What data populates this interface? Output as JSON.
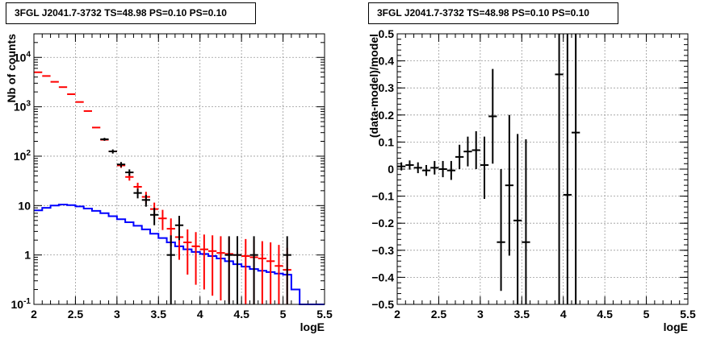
{
  "chart_data": [
    {
      "type": "line",
      "title": "3FGL J2041.7-3732 TS=48.98 PS=0.10 PS=0.10",
      "xlabel": "logE",
      "ylabel": "Nb of counts",
      "xlim": [
        2,
        5.5
      ],
      "ylim": [
        0.1,
        30000
      ],
      "yscale": "log",
      "grid": true,
      "xticks": [
        "2",
        "2.5",
        "3",
        "3.5",
        "4",
        "4.5",
        "5",
        "5.5"
      ],
      "yticks": [
        "10^-1",
        "1",
        "10",
        "10^2",
        "10^3",
        "10^4"
      ],
      "series": [
        {
          "color": "#ff0000",
          "kind": "errorbar",
          "points": [
            {
              "x": 2.05,
              "y": 5000,
              "lo": 0,
              "hi": 0
            },
            {
              "x": 2.15,
              "y": 4200,
              "lo": 0,
              "hi": 0
            },
            {
              "x": 2.25,
              "y": 3200,
              "lo": 0,
              "hi": 0
            },
            {
              "x": 2.35,
              "y": 2500,
              "lo": 0,
              "hi": 0
            },
            {
              "x": 2.45,
              "y": 1800,
              "lo": 0,
              "hi": 0
            },
            {
              "x": 2.55,
              "y": 1250,
              "lo": 0,
              "hi": 0
            },
            {
              "x": 2.65,
              "y": 820,
              "lo": 0,
              "hi": 0
            },
            {
              "x": 2.75,
              "y": 380,
              "lo": 0,
              "hi": 0
            },
            {
              "x": 2.85,
              "y": 215,
              "lo": 0,
              "hi": 0
            },
            {
              "x": 2.95,
              "y": 125,
              "lo": 0,
              "hi": 0
            },
            {
              "x": 3.05,
              "y": 65,
              "lo": 58,
              "hi": 73
            },
            {
              "x": 3.15,
              "y": 38,
              "lo": 32,
              "hi": 45
            },
            {
              "x": 3.25,
              "y": 24,
              "lo": 19,
              "hi": 29
            },
            {
              "x": 3.35,
              "y": 15,
              "lo": 11,
              "hi": 19
            },
            {
              "x": 3.45,
              "y": 8.5,
              "lo": 5.8,
              "hi": 11.5
            },
            {
              "x": 3.55,
              "y": 5.5,
              "lo": 3.2,
              "hi": 8.2
            },
            {
              "x": 3.65,
              "y": 3.4,
              "lo": 1.5,
              "hi": 5.5
            },
            {
              "x": 3.75,
              "y": 2.3,
              "lo": 0.8,
              "hi": 4.0
            },
            {
              "x": 3.85,
              "y": 1.8,
              "lo": 0.4,
              "hi": 3.3
            },
            {
              "x": 3.95,
              "y": 1.5,
              "lo": 0.25,
              "hi": 2.9
            },
            {
              "x": 4.05,
              "y": 1.3,
              "lo": 0.2,
              "hi": 2.6
            },
            {
              "x": 4.15,
              "y": 1.2,
              "lo": 0.15,
              "hi": 2.5
            },
            {
              "x": 4.25,
              "y": 1.1,
              "lo": 0.12,
              "hi": 2.4
            },
            {
              "x": 4.35,
              "y": 1.05,
              "lo": 0.11,
              "hi": 2.3
            },
            {
              "x": 4.45,
              "y": 1.0,
              "lo": 0.1,
              "hi": 2.2
            },
            {
              "x": 4.55,
              "y": 0.95,
              "lo": 0.1,
              "hi": 2.1
            },
            {
              "x": 4.65,
              "y": 0.9,
              "lo": 0.1,
              "hi": 2.0
            },
            {
              "x": 4.75,
              "y": 0.85,
              "lo": 0.1,
              "hi": 1.9
            },
            {
              "x": 4.85,
              "y": 0.75,
              "lo": 0.1,
              "hi": 1.8
            },
            {
              "x": 4.95,
              "y": 0.6,
              "lo": 0.1,
              "hi": 1.6
            },
            {
              "x": 5.05,
              "y": 0.5,
              "lo": 0.1,
              "hi": 1.4
            }
          ]
        },
        {
          "color": "#000000",
          "kind": "errorbar",
          "points": [
            {
              "x": 2.85,
              "y": 220,
              "lo": 205,
              "hi": 235
            },
            {
              "x": 2.95,
              "y": 125,
              "lo": 113,
              "hi": 137
            },
            {
              "x": 3.05,
              "y": 68,
              "lo": 60,
              "hi": 76
            },
            {
              "x": 3.15,
              "y": 47,
              "lo": 40,
              "hi": 54
            },
            {
              "x": 3.25,
              "y": 18,
              "lo": 14,
              "hi": 22
            },
            {
              "x": 3.35,
              "y": 13,
              "lo": 9.5,
              "hi": 16.5
            },
            {
              "x": 3.45,
              "y": 6.5,
              "lo": 4.0,
              "hi": 9.0
            },
            {
              "x": 3.65,
              "y": 1.0,
              "lo": 0.1,
              "hi": 2.5
            },
            {
              "x": 3.75,
              "y": 4.0,
              "lo": 2.0,
              "hi": 6.2
            },
            {
              "x": 4.35,
              "y": 1.0,
              "lo": 0.1,
              "hi": 2.4
            },
            {
              "x": 4.45,
              "y": 1.0,
              "lo": 0.1,
              "hi": 2.4
            },
            {
              "x": 4.65,
              "y": 1.0,
              "lo": 0.1,
              "hi": 2.4
            },
            {
              "x": 5.05,
              "y": 1.0,
              "lo": 0.1,
              "hi": 2.4
            }
          ]
        },
        {
          "color": "#0000ff",
          "kind": "step",
          "edges": [
            2.0,
            2.1,
            2.2,
            2.3,
            2.4,
            2.5,
            2.6,
            2.7,
            2.8,
            2.9,
            3.0,
            3.1,
            3.2,
            3.3,
            3.4,
            3.5,
            3.6,
            3.7,
            3.8,
            3.9,
            4.0,
            4.1,
            4.2,
            4.3,
            4.4,
            4.5,
            4.6,
            4.7,
            4.8,
            4.9,
            5.0,
            5.1,
            5.2,
            5.3,
            5.4,
            5.5
          ],
          "values": [
            8,
            9,
            10,
            10.5,
            10.2,
            9.6,
            8.7,
            7.8,
            7.0,
            6.1,
            5.3,
            4.6,
            3.9,
            3.3,
            2.7,
            2.2,
            1.8,
            1.5,
            1.3,
            1.15,
            1.05,
            0.95,
            0.85,
            0.75,
            0.65,
            0.58,
            0.52,
            0.48,
            0.45,
            0.42,
            0.4,
            0.2,
            0.1,
            0.1,
            0.1
          ]
        }
      ]
    },
    {
      "type": "scatter",
      "title": "3FGL J2041.7-3732 TS=48.98 PS=0.10 PS=0.10",
      "xlabel": "logE",
      "ylabel": "(data-model)/model",
      "xlim": [
        2,
        5.5
      ],
      "ylim": [
        -0.5,
        0.5
      ],
      "grid": true,
      "xticks": [
        "2",
        "2.5",
        "3",
        "3.5",
        "4",
        "4.5",
        "5",
        "5.5"
      ],
      "yticks": [
        "-0.5",
        "-0.4",
        "-0.3",
        "-0.2",
        "-0.1",
        "0",
        "0.1",
        "0.2",
        "0.3",
        "0.4",
        "0.5"
      ],
      "series": [
        {
          "color": "#000000",
          "kind": "errorbar",
          "points": [
            {
              "x": 2.05,
              "y": 0.01,
              "lo": -0.005,
              "hi": 0.025
            },
            {
              "x": 2.15,
              "y": 0.015,
              "lo": -0.002,
              "hi": 0.032
            },
            {
              "x": 2.25,
              "y": 0.005,
              "lo": -0.015,
              "hi": 0.025
            },
            {
              "x": 2.35,
              "y": -0.005,
              "lo": -0.025,
              "hi": 0.015
            },
            {
              "x": 2.45,
              "y": 0.005,
              "lo": -0.02,
              "hi": 0.03
            },
            {
              "x": 2.55,
              "y": 0.0,
              "lo": -0.03,
              "hi": 0.03
            },
            {
              "x": 2.65,
              "y": -0.005,
              "lo": -0.04,
              "hi": 0.03
            },
            {
              "x": 2.75,
              "y": 0.045,
              "lo": 0.0,
              "hi": 0.09
            },
            {
              "x": 2.85,
              "y": 0.065,
              "lo": 0.01,
              "hi": 0.12
            },
            {
              "x": 2.95,
              "y": 0.07,
              "lo": 0.0,
              "hi": 0.14
            },
            {
              "x": 3.05,
              "y": 0.015,
              "lo": -0.11,
              "hi": 0.12
            },
            {
              "x": 3.15,
              "y": 0.195,
              "lo": 0.02,
              "hi": 0.37
            },
            {
              "x": 3.25,
              "y": -0.27,
              "lo": -0.45,
              "hi": 0.0
            },
            {
              "x": 3.35,
              "y": -0.06,
              "lo": -0.32,
              "hi": 0.2
            },
            {
              "x": 3.45,
              "y": -0.19,
              "lo": -0.5,
              "hi": 0.13
            },
            {
              "x": 3.55,
              "y": -0.27,
              "lo": -0.5,
              "hi": 0.11
            },
            {
              "x": 3.95,
              "y": 0.35,
              "lo": -0.5,
              "hi": 0.5
            },
            {
              "x": 4.05,
              "y": -0.095,
              "lo": -0.5,
              "hi": 0.5
            },
            {
              "x": 4.15,
              "y": 0.135,
              "lo": -0.5,
              "hi": 0.5
            }
          ]
        }
      ]
    }
  ]
}
